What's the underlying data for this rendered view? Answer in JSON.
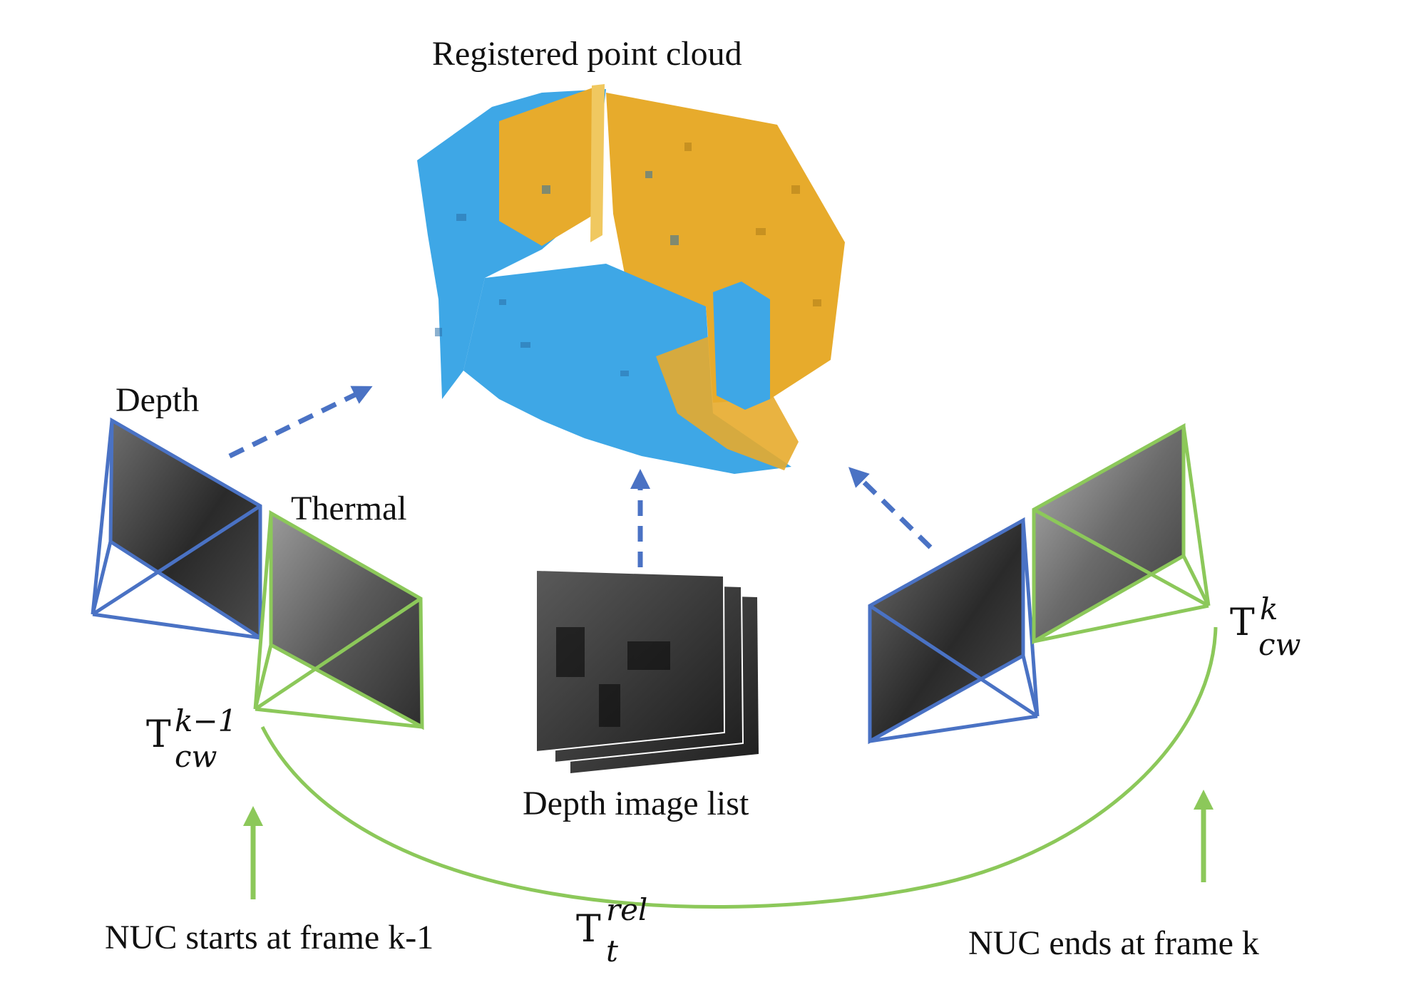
{
  "labels": {
    "registered_point_cloud": "Registered point cloud",
    "depth": "Depth",
    "thermal": "Thermal",
    "depth_image_list": "Depth image list",
    "nuc_start": "NUC starts at frame k-1",
    "nuc_end": "NUC ends at frame k"
  },
  "math": {
    "pose_prev": {
      "base": "T",
      "sub": "cw",
      "sup": "k−1"
    },
    "pose_curr": {
      "base": "T",
      "sub": "cw",
      "sup": "k"
    },
    "relative": {
      "base": "T",
      "sub": "t",
      "sup": "rel"
    }
  },
  "colors": {
    "depth_frame": "#4a72c4",
    "thermal_frame": "#8cc85a",
    "cloud_blue": "#3ea7e6",
    "cloud_yellow": "#e7ab2c",
    "arrow_dashed": "#4a72c4",
    "arrow_solid": "#8cc85a"
  }
}
